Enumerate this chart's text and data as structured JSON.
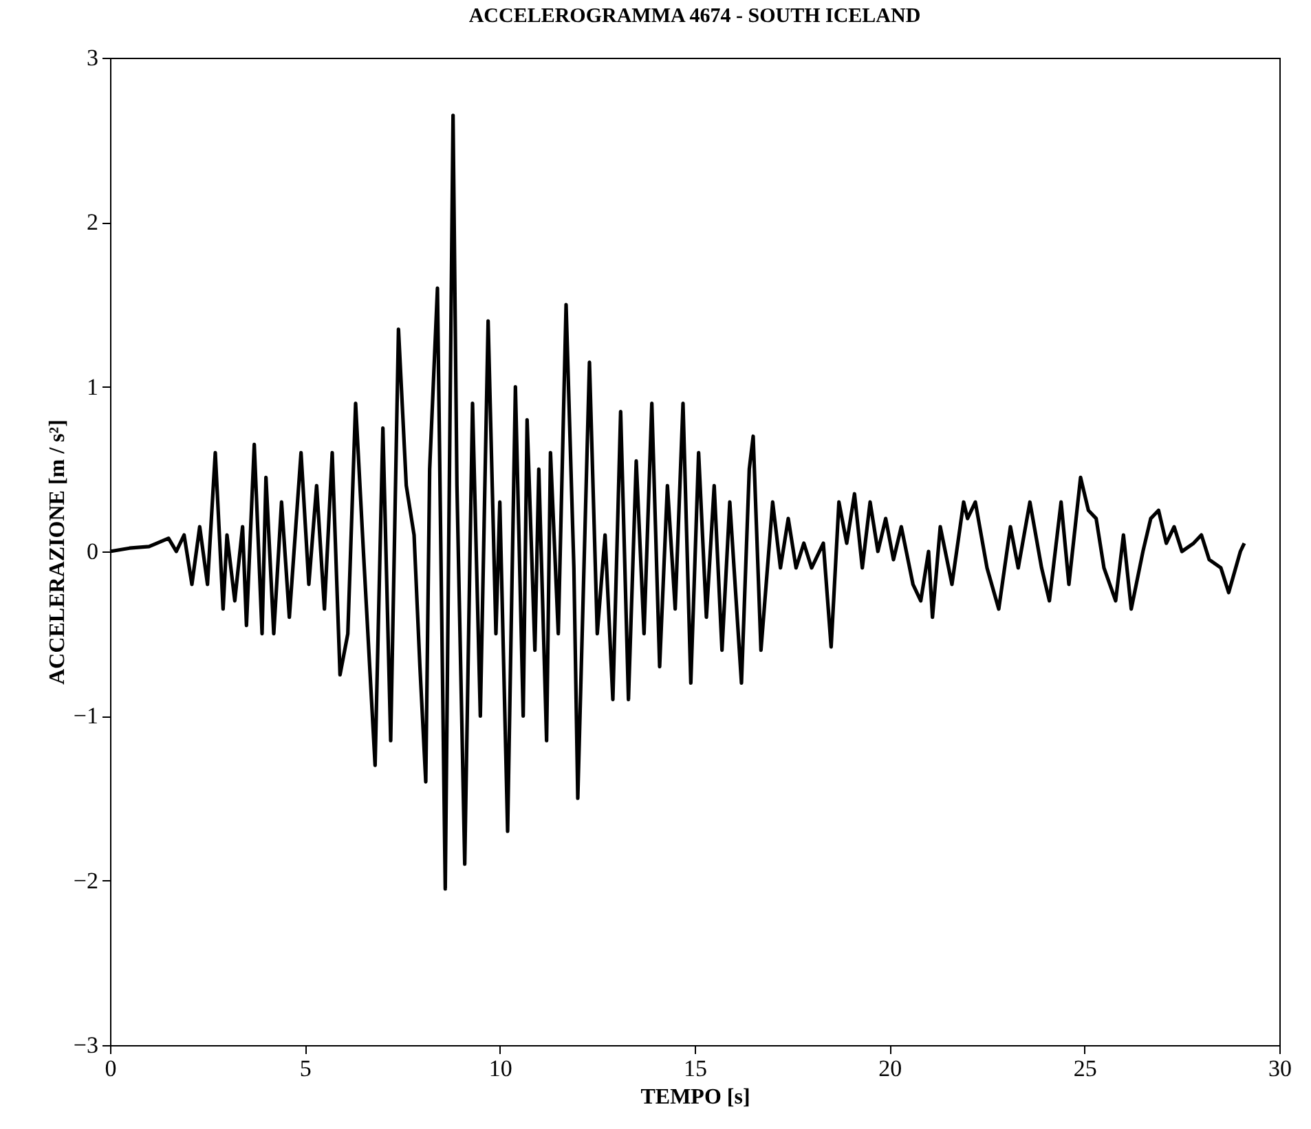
{
  "chart_data": {
    "type": "line",
    "title": "ACCELEROGRAMMA 4674 - SOUTH ICELAND",
    "xlabel": "TEMPO [s]",
    "ylabel": "ACCELERAZIONE [m / s²]",
    "x": [
      0,
      0.5,
      1,
      1.2,
      1.5,
      1.7,
      1.9,
      2.0,
      2.1,
      2.3,
      2.5,
      2.7,
      2.9,
      3.0,
      3.2,
      3.4,
      3.5,
      3.7,
      3.9,
      4.0,
      4.2,
      4.4,
      4.6,
      4.9,
      5.1,
      5.3,
      5.5,
      5.7,
      5.9,
      6.1,
      6.3,
      6.5,
      6.8,
      7.0,
      7.2,
      7.4,
      7.6,
      7.8,
      7.95,
      8.1,
      8.2,
      8.4,
      8.6,
      8.8,
      8.9,
      9.1,
      9.3,
      9.5,
      9.7,
      9.9,
      10.0,
      10.2,
      10.4,
      10.6,
      10.7,
      10.9,
      11.0,
      11.2,
      11.3,
      11.5,
      11.7,
      11.9,
      12.0,
      12.3,
      12.5,
      12.7,
      12.9,
      13.1,
      13.3,
      13.5,
      13.7,
      13.9,
      14.1,
      14.3,
      14.5,
      14.7,
      14.9,
      15.1,
      15.3,
      15.5,
      15.7,
      15.9,
      16.2,
      16.4,
      16.5,
      16.7,
      17.0,
      17.2,
      17.4,
      17.6,
      17.8,
      18.0,
      18.3,
      18.5,
      18.7,
      18.9,
      19.1,
      19.3,
      19.5,
      19.7,
      19.9,
      20.1,
      20.3,
      20.6,
      20.8,
      21.0,
      21.1,
      21.3,
      21.6,
      21.9,
      22.0,
      22.2,
      22.5,
      22.8,
      23.1,
      23.3,
      23.6,
      23.9,
      24.1,
      24.4,
      24.6,
      24.9,
      25.1,
      25.3,
      25.5,
      25.8,
      26.0,
      26.2,
      26.5,
      26.7,
      26.9,
      27.1,
      27.3,
      27.5,
      27.8,
      28.0,
      28.2,
      28.5,
      28.7,
      29.0,
      29.1
    ],
    "series": [
      {
        "color": "#000000",
        "values": [
          0,
          0.02,
          0.03,
          0.05,
          0.08,
          0.0,
          0.1,
          -0.05,
          -0.2,
          0.15,
          -0.2,
          0.6,
          -0.35,
          0.1,
          -0.3,
          0.15,
          -0.45,
          0.65,
          -0.5,
          0.45,
          -0.5,
          0.3,
          -0.4,
          0.6,
          -0.2,
          0.4,
          -0.35,
          0.6,
          -0.75,
          -0.5,
          0.9,
          0.0,
          -1.3,
          0.75,
          -1.15,
          1.35,
          0.4,
          0.1,
          -0.7,
          -1.4,
          0.5,
          1.6,
          -2.05,
          2.65,
          0.4,
          -1.9,
          0.9,
          -1.0,
          1.4,
          -0.5,
          0.3,
          -1.7,
          1.0,
          -1.0,
          0.8,
          -0.6,
          0.5,
          -1.15,
          0.6,
          -0.5,
          1.5,
          -0.1,
          -1.5,
          1.15,
          -0.5,
          0.1,
          -0.9,
          0.85,
          -0.9,
          0.55,
          -0.5,
          0.9,
          -0.7,
          0.4,
          -0.35,
          0.9,
          -0.8,
          0.6,
          -0.4,
          0.4,
          -0.6,
          0.3,
          -0.8,
          0.5,
          0.7,
          -0.6,
          0.3,
          -0.1,
          0.2,
          -0.1,
          0.05,
          -0.1,
          0.05,
          -0.58,
          0.3,
          0.05,
          0.35,
          -0.1,
          0.3,
          0.0,
          0.2,
          -0.05,
          0.15,
          -0.2,
          -0.3,
          0.0,
          -0.4,
          0.15,
          -0.2,
          0.3,
          0.2,
          0.3,
          -0.1,
          -0.35,
          0.15,
          -0.1,
          0.3,
          -0.1,
          -0.3,
          0.3,
          -0.2,
          0.45,
          0.25,
          0.2,
          -0.1,
          -0.3,
          0.1,
          -0.35,
          0.0,
          0.2,
          0.25,
          0.05,
          0.15,
          0.0,
          0.05,
          0.1,
          -0.05,
          -0.1,
          -0.25,
          0.0,
          0.05
        ]
      }
    ],
    "xlim": [
      0,
      30
    ],
    "xticks": [
      0,
      5,
      10,
      15,
      20,
      25,
      30
    ],
    "ylim": [
      -3,
      3
    ],
    "yticks": [
      -3,
      -2,
      -1,
      0,
      1,
      2,
      3
    ],
    "grid": false,
    "marker": "none",
    "line_style": "solid"
  }
}
